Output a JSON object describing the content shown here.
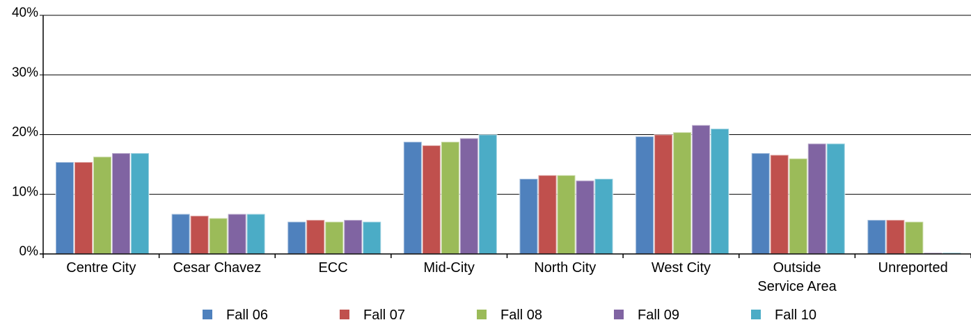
{
  "chart_data": {
    "type": "bar",
    "categories": [
      [
        "Centre City"
      ],
      [
        "Cesar Chavez"
      ],
      [
        "ECC"
      ],
      [
        "Mid-City"
      ],
      [
        "North City"
      ],
      [
        "West City"
      ],
      [
        "Outside",
        "Service Area"
      ],
      [
        "Unreported"
      ]
    ],
    "series": [
      {
        "name": "Fall 06",
        "color": "#4f81bd",
        "values": [
          15.4,
          6.7,
          5.4,
          18.8,
          12.6,
          19.7,
          16.9,
          5.7
        ]
      },
      {
        "name": "Fall 07",
        "color": "#c0504d",
        "values": [
          15.4,
          6.4,
          5.7,
          18.2,
          13.2,
          20.0,
          16.6,
          5.7
        ]
      },
      {
        "name": "Fall 08",
        "color": "#9bbb59",
        "values": [
          16.3,
          6.0,
          5.4,
          18.8,
          13.2,
          20.4,
          16.0,
          5.4
        ]
      },
      {
        "name": "Fall 09",
        "color": "#8064a2",
        "values": [
          16.9,
          6.7,
          5.7,
          19.4,
          12.3,
          21.6,
          18.5,
          0.2
        ]
      },
      {
        "name": "Fall 10",
        "color": "#4bacc6",
        "values": [
          16.9,
          6.7,
          5.4,
          20.0,
          12.6,
          21.0,
          18.5,
          0.2
        ]
      }
    ],
    "yticks": [
      "0%",
      "10%",
      "20%",
      "30%",
      "40%"
    ],
    "ylim": [
      0,
      40
    ],
    "grid": true,
    "legend_position": "bottom"
  }
}
